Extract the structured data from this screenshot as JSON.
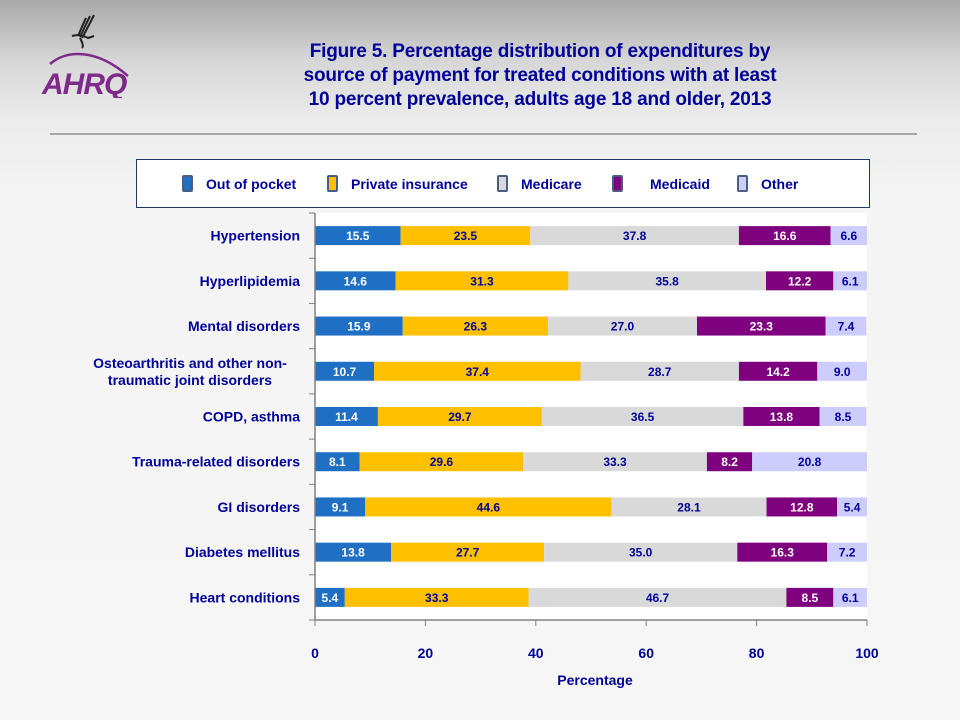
{
  "header": {
    "logo_text": "AHRQ",
    "title_lines": [
      "Figure 5. Percentage distribution of expenditures by",
      "source of payment for treated conditions with at least",
      "10 percent prevalence, adults age 18 and older, 2013"
    ]
  },
  "chart_data": {
    "type": "bar",
    "orientation": "horizontal",
    "stacked": true,
    "title": "Figure 5. Percentage distribution of expenditures by source of payment for treated conditions with at least 10 percent prevalence, adults age 18 and older, 2013",
    "xlabel": "Percentage",
    "ylabel": "",
    "xlim": [
      0,
      100
    ],
    "xticks": [
      0,
      20,
      40,
      60,
      80,
      100
    ],
    "grid": false,
    "legend_position": "top",
    "categories": [
      "Hypertension",
      "Hyperlipidemia",
      "Mental disorders",
      "Osteoarthritis and other non-traumatic joint disorders",
      "COPD, asthma",
      "Trauma-related disorders",
      "GI disorders",
      "Diabetes mellitus",
      "Heart conditions"
    ],
    "category_label_lines": [
      [
        "Hypertension"
      ],
      [
        "Hyperlipidemia"
      ],
      [
        "Mental disorders"
      ],
      [
        "Osteoarthritis and other non-",
        "traumatic joint disorders"
      ],
      [
        "COPD, asthma"
      ],
      [
        "Trauma-related disorders"
      ],
      [
        "GI disorders"
      ],
      [
        "Diabetes mellitus"
      ],
      [
        "Heart conditions"
      ]
    ],
    "series": [
      {
        "name": "Out of pocket",
        "color": "#1f6fc5",
        "label_color": "#ffffff",
        "values": [
          15.5,
          14.6,
          15.9,
          10.7,
          11.4,
          8.1,
          9.1,
          13.8,
          5.4
        ]
      },
      {
        "name": "Private insurance",
        "color": "#ffc000",
        "label_color": "#000099",
        "values": [
          23.5,
          31.3,
          26.3,
          37.4,
          29.7,
          29.6,
          44.6,
          27.7,
          33.3
        ]
      },
      {
        "name": "Medicare",
        "color": "#d9d9d9",
        "label_color": "#000099",
        "values": [
          37.8,
          35.8,
          27.0,
          28.7,
          36.5,
          33.3,
          28.1,
          35.0,
          46.7
        ]
      },
      {
        "name": "Medicaid",
        "color": "#7f007f",
        "label_color": "#ffffff",
        "values": [
          16.6,
          12.2,
          23.3,
          14.2,
          13.8,
          8.2,
          12.8,
          16.3,
          8.5
        ]
      },
      {
        "name": "Other",
        "color": "#ccccff",
        "label_color": "#000099",
        "values": [
          6.6,
          6.1,
          7.4,
          9.0,
          8.5,
          20.8,
          5.4,
          7.2,
          6.1
        ]
      }
    ]
  }
}
